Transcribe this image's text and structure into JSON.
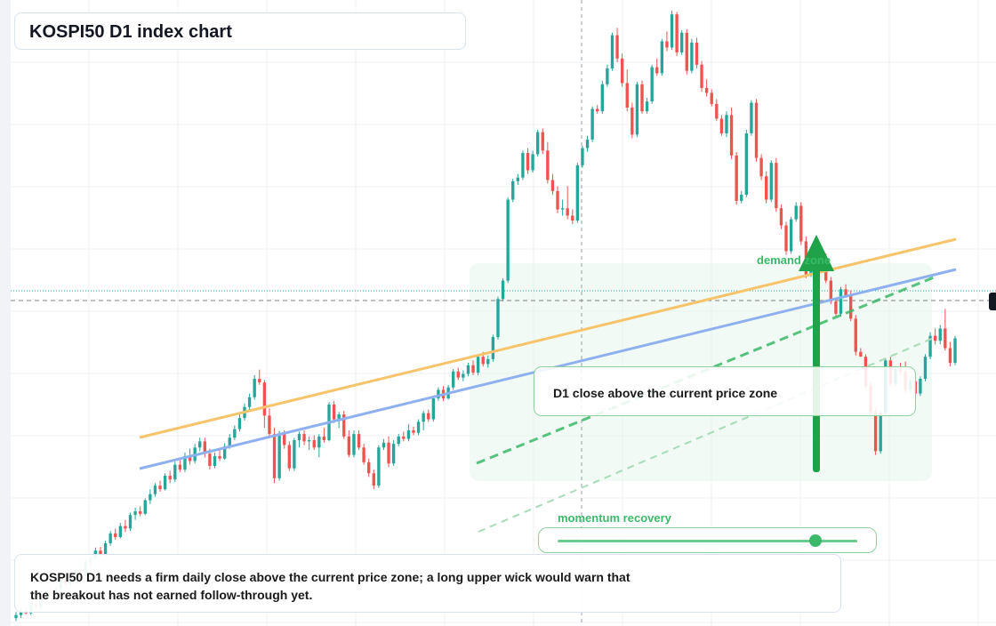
{
  "title": "KOSPI50 D1 index chart",
  "annotations": {
    "callout": "D1 close above the current price zone",
    "demand_zone_label": "demand zone",
    "momentum_label": "momentum recovery",
    "momentum_level": 0.86,
    "note": "KOSPI50 D1 needs a firm daily close above the current price zone; a long upper wick would warn that the breakout has not earned follow-through yet."
  },
  "colors": {
    "up": "#26a69a",
    "down": "#ef5350",
    "orange_line": "#f7c36b",
    "blue_line": "#8fb0f0",
    "zone_green": "#3cb86a",
    "arrow": "#1fa34a"
  },
  "chart_data": {
    "type": "candlestick",
    "timeframe": "D1",
    "symbol": "KOSPI50",
    "y_axis": "price (unlabeled)",
    "ylim": [
      0,
      100
    ],
    "grid": true,
    "candles_note": "OHLC in relative price units (axis not printed)",
    "candles": [
      [
        1.0,
        2.0,
        0.5,
        1.5
      ],
      [
        1.5,
        2.5,
        1.0,
        2.2
      ],
      [
        2.2,
        2.8,
        1.6,
        1.8
      ],
      [
        1.8,
        3.5,
        1.5,
        3.2
      ],
      [
        3.2,
        3.8,
        2.5,
        2.8
      ],
      [
        2.8,
        4.5,
        2.6,
        4.2
      ],
      [
        4.2,
        5.6,
        3.8,
        5.2
      ],
      [
        5.2,
        6.0,
        4.5,
        4.8
      ],
      [
        4.8,
        6.2,
        4.4,
        5.8
      ],
      [
        5.8,
        7.5,
        5.4,
        7.2
      ],
      [
        7.2,
        7.8,
        6.2,
        6.5
      ],
      [
        6.5,
        8.2,
        6.2,
        7.8
      ],
      [
        7.8,
        9.0,
        7.0,
        8.6
      ],
      [
        8.6,
        9.2,
        7.6,
        8.0
      ],
      [
        8.0,
        10.5,
        7.8,
        10.2
      ],
      [
        10.2,
        11.2,
        9.5,
        10.8
      ],
      [
        10.8,
        12.5,
        10.4,
        12.0
      ],
      [
        12.0,
        12.6,
        11.0,
        11.4
      ],
      [
        11.4,
        13.6,
        11.0,
        13.2
      ],
      [
        13.2,
        15.2,
        12.8,
        14.8
      ],
      [
        14.8,
        15.6,
        13.8,
        14.2
      ],
      [
        14.2,
        16.5,
        14.0,
        16.0
      ],
      [
        16.0,
        17.0,
        15.0,
        15.6
      ],
      [
        15.6,
        18.2,
        15.2,
        17.8
      ],
      [
        17.8,
        19.0,
        17.0,
        18.4
      ],
      [
        18.4,
        19.2,
        17.6,
        18.0
      ],
      [
        18.0,
        20.5,
        17.8,
        20.2
      ],
      [
        20.2,
        22.0,
        19.6,
        21.2
      ],
      [
        21.2,
        23.0,
        20.8,
        22.6
      ],
      [
        22.6,
        23.4,
        21.6,
        22.0
      ],
      [
        22.0,
        24.6,
        21.8,
        24.2
      ],
      [
        24.2,
        25.0,
        23.0,
        23.6
      ],
      [
        23.6,
        26.5,
        23.2,
        26.0
      ],
      [
        26.0,
        26.8,
        24.8,
        25.2
      ],
      [
        25.2,
        28.0,
        24.8,
        27.4
      ],
      [
        27.4,
        28.6,
        26.0,
        26.6
      ],
      [
        26.6,
        29.4,
        26.2,
        28.8
      ],
      [
        28.8,
        30.4,
        28.2,
        29.8
      ],
      [
        29.8,
        30.4,
        27.2,
        27.8
      ],
      [
        27.8,
        28.6,
        25.2,
        25.8
      ],
      [
        25.8,
        28.0,
        25.4,
        27.4
      ],
      [
        27.4,
        28.4,
        26.6,
        27.0
      ],
      [
        27.0,
        29.5,
        26.8,
        29.0
      ],
      [
        29.0,
        31.0,
        28.6,
        30.4
      ],
      [
        30.4,
        32.4,
        30.0,
        31.8
      ],
      [
        31.8,
        34.2,
        31.4,
        33.6
      ],
      [
        33.6,
        36.0,
        33.2,
        35.4
      ],
      [
        35.4,
        37.6,
        35.0,
        37.0
      ],
      [
        37.0,
        40.6,
        36.6,
        40.0
      ],
      [
        40.0,
        41.5,
        39.0,
        39.4
      ],
      [
        39.4,
        39.8,
        32.0,
        34.0
      ],
      [
        34.0,
        35.2,
        30.5,
        31.0
      ],
      [
        31.0,
        32.0,
        23.0,
        23.8
      ],
      [
        23.8,
        31.5,
        23.4,
        31.0
      ],
      [
        31.0,
        31.6,
        28.6,
        29.2
      ],
      [
        29.2,
        29.8,
        25.0,
        25.4
      ],
      [
        25.4,
        30.4,
        25.0,
        30.0
      ],
      [
        30.0,
        31.4,
        28.8,
        31.0
      ],
      [
        31.0,
        31.6,
        29.2,
        29.8
      ],
      [
        29.8,
        30.6,
        28.4,
        30.0
      ],
      [
        30.0,
        30.8,
        28.4,
        28.8
      ],
      [
        28.8,
        31.0,
        27.2,
        30.6
      ],
      [
        30.6,
        32.0,
        29.6,
        30.0
      ],
      [
        30.0,
        36.2,
        29.8,
        35.8
      ],
      [
        35.8,
        36.4,
        32.8,
        33.4
      ],
      [
        33.4,
        34.6,
        32.0,
        34.2
      ],
      [
        34.2,
        34.8,
        30.2,
        30.6
      ],
      [
        30.6,
        31.6,
        27.2,
        27.6
      ],
      [
        27.6,
        31.6,
        27.2,
        31.0
      ],
      [
        31.0,
        31.6,
        28.4,
        28.8
      ],
      [
        28.8,
        29.4,
        26.0,
        26.4
      ],
      [
        26.4,
        27.0,
        24.0,
        24.6
      ],
      [
        24.6,
        25.2,
        22.0,
        22.6
      ],
      [
        22.6,
        29.2,
        22.2,
        28.8
      ],
      [
        28.8,
        30.2,
        28.4,
        29.6
      ],
      [
        29.6,
        30.6,
        25.6,
        26.2
      ],
      [
        26.2,
        30.0,
        25.8,
        29.4
      ],
      [
        29.4,
        31.0,
        29.0,
        30.6
      ],
      [
        30.6,
        31.4,
        29.8,
        30.2
      ],
      [
        30.2,
        32.6,
        29.8,
        31.6
      ],
      [
        31.6,
        32.2,
        30.8,
        31.2
      ],
      [
        31.2,
        33.4,
        30.8,
        33.0
      ],
      [
        33.0,
        34.8,
        31.6,
        34.4
      ],
      [
        34.4,
        35.0,
        33.0,
        33.4
      ],
      [
        33.4,
        37.2,
        33.0,
        36.8
      ],
      [
        36.8,
        38.6,
        36.4,
        38.2
      ],
      [
        38.2,
        38.8,
        36.4,
        36.8
      ],
      [
        36.8,
        39.0,
        36.6,
        38.6
      ],
      [
        38.6,
        41.6,
        38.2,
        41.2
      ],
      [
        41.2,
        41.8,
        39.8,
        40.2
      ],
      [
        40.2,
        41.4,
        39.6,
        40.8
      ],
      [
        40.8,
        42.6,
        40.4,
        42.2
      ],
      [
        42.2,
        43.0,
        40.6,
        41.0
      ],
      [
        41.0,
        44.0,
        40.6,
        43.6
      ],
      [
        43.6,
        44.4,
        42.0,
        42.4
      ],
      [
        42.4,
        43.8,
        41.8,
        43.2
      ],
      [
        43.2,
        47.2,
        42.8,
        46.8
      ],
      [
        46.8,
        53.4,
        46.4,
        53.0
      ],
      [
        53.0,
        56.4,
        52.6,
        56.0
      ],
      [
        56.0,
        69.6,
        55.6,
        69.2
      ],
      [
        69.2,
        72.6,
        68.8,
        72.2
      ],
      [
        72.2,
        73.4,
        71.6,
        72.8
      ],
      [
        72.8,
        77.2,
        72.4,
        76.8
      ],
      [
        76.8,
        77.6,
        73.4,
        74.0
      ],
      [
        74.0,
        77.2,
        73.6,
        76.6
      ],
      [
        76.6,
        80.6,
        76.2,
        80.2
      ],
      [
        80.2,
        80.8,
        76.6,
        77.2
      ],
      [
        77.2,
        78.6,
        71.8,
        72.4
      ],
      [
        72.4,
        73.4,
        70.0,
        70.6
      ],
      [
        70.6,
        71.4,
        67.0,
        67.6
      ],
      [
        67.6,
        69.2,
        66.6,
        67.8
      ],
      [
        67.8,
        71.4,
        66.0,
        66.6
      ],
      [
        66.6,
        67.6,
        65.2,
        65.8
      ],
      [
        65.8,
        75.2,
        65.4,
        74.8
      ],
      [
        74.8,
        78.0,
        74.4,
        77.6
      ],
      [
        77.6,
        79.6,
        77.0,
        79.0
      ],
      [
        79.0,
        84.4,
        78.6,
        84.0
      ],
      [
        84.0,
        84.6,
        83.2,
        83.6
      ],
      [
        83.6,
        88.6,
        83.2,
        88.0
      ],
      [
        88.0,
        91.2,
        87.6,
        90.6
      ],
      [
        90.6,
        96.4,
        90.2,
        96.0
      ],
      [
        96.0,
        97.2,
        91.6,
        92.2
      ],
      [
        92.2,
        93.0,
        87.6,
        88.2
      ],
      [
        88.2,
        90.4,
        83.6,
        84.2
      ],
      [
        84.2,
        85.0,
        79.2,
        79.8
      ],
      [
        79.8,
        88.4,
        79.4,
        88.0
      ],
      [
        88.0,
        88.6,
        83.2,
        83.6
      ],
      [
        83.6,
        85.8,
        83.2,
        85.2
      ],
      [
        85.2,
        91.2,
        84.8,
        90.8
      ],
      [
        90.8,
        92.2,
        89.4,
        89.8
      ],
      [
        89.8,
        95.4,
        89.4,
        95.0
      ],
      [
        95.0,
        96.6,
        93.4,
        94.0
      ],
      [
        94.0,
        100.0,
        93.6,
        99.4
      ],
      [
        99.4,
        99.8,
        92.6,
        93.2
      ],
      [
        93.2,
        96.8,
        92.8,
        96.4
      ],
      [
        96.4,
        97.0,
        89.6,
        90.2
      ],
      [
        90.2,
        95.4,
        89.8,
        94.8
      ],
      [
        94.8,
        95.6,
        90.6,
        91.2
      ],
      [
        91.2,
        91.8,
        86.8,
        87.4
      ],
      [
        87.4,
        88.8,
        86.0,
        86.6
      ],
      [
        86.6,
        87.2,
        84.4,
        84.8
      ],
      [
        84.8,
        85.6,
        82.0,
        82.4
      ],
      [
        82.4,
        83.0,
        79.6,
        80.0
      ],
      [
        80.0,
        83.6,
        79.4,
        83.0
      ],
      [
        83.0,
        84.2,
        75.8,
        76.4
      ],
      [
        76.4,
        77.0,
        68.4,
        69.0
      ],
      [
        69.0,
        70.6,
        68.6,
        70.0
      ],
      [
        70.0,
        80.6,
        69.6,
        80.0
      ],
      [
        80.0,
        85.4,
        79.6,
        85.0
      ],
      [
        85.0,
        85.6,
        75.4,
        76.0
      ],
      [
        76.0,
        76.6,
        72.4,
        73.0
      ],
      [
        73.0,
        73.8,
        68.6,
        69.2
      ],
      [
        69.2,
        75.6,
        68.8,
        75.2
      ],
      [
        75.2,
        76.0,
        67.2,
        67.8
      ],
      [
        67.8,
        68.4,
        64.4,
        65.0
      ],
      [
        65.0,
        65.6,
        60.2,
        60.8
      ],
      [
        60.8,
        66.4,
        60.4,
        66.0
      ],
      [
        66.0,
        68.8,
        65.6,
        68.2
      ],
      [
        68.2,
        68.8,
        61.8,
        62.4
      ],
      [
        62.4,
        63.2,
        56.4,
        57.0
      ],
      [
        57.0,
        60.6,
        56.6,
        60.2
      ],
      [
        60.2,
        61.0,
        58.0,
        58.4
      ],
      [
        58.4,
        60.4,
        58.0,
        59.8
      ],
      [
        59.8,
        60.4,
        55.6,
        56.0
      ],
      [
        56.0,
        56.6,
        52.2,
        52.6
      ],
      [
        52.6,
        53.2,
        50.2,
        50.6
      ],
      [
        50.6,
        55.0,
        50.2,
        54.6
      ],
      [
        54.6,
        55.4,
        53.2,
        53.6
      ],
      [
        53.6,
        54.4,
        49.4,
        49.8
      ],
      [
        49.8,
        50.4,
        43.8,
        44.4
      ],
      [
        44.4,
        45.0,
        43.6,
        43.6
      ],
      [
        43.6,
        44.0,
        38.4,
        38.8
      ],
      [
        38.8,
        39.4,
        34.0,
        34.6
      ],
      [
        34.6,
        35.2,
        27.6,
        28.2
      ],
      [
        28.2,
        34.8,
        27.8,
        34.4
      ],
      [
        34.4,
        43.4,
        34.0,
        43.0
      ],
      [
        43.0,
        43.6,
        38.8,
        39.2
      ],
      [
        39.2,
        42.0,
        38.8,
        41.6
      ],
      [
        41.6,
        42.6,
        40.6,
        41.2
      ],
      [
        41.2,
        42.8,
        37.6,
        38.2
      ],
      [
        38.2,
        40.2,
        37.8,
        39.6
      ],
      [
        39.6,
        40.4,
        37.2,
        37.6
      ],
      [
        37.6,
        40.4,
        37.2,
        40.0
      ],
      [
        40.0,
        44.0,
        39.6,
        43.6
      ],
      [
        43.6,
        47.6,
        43.2,
        47.0
      ],
      [
        47.0,
        48.2,
        45.6,
        46.2
      ],
      [
        46.2,
        48.8,
        45.6,
        48.2
      ],
      [
        48.2,
        51.4,
        44.6,
        45.0
      ],
      [
        45.0,
        46.0,
        42.0,
        42.6
      ],
      [
        42.6,
        47.0,
        42.2,
        46.6
      ]
    ],
    "trendlines": [
      {
        "style": "solid",
        "color": "#f7c36b"
      },
      {
        "style": "solid",
        "color": "#8fb0f0"
      },
      {
        "style": "dashed",
        "color": "#3cb86a"
      },
      {
        "style": "dashed",
        "color": "#a8dcb9"
      }
    ],
    "current_price_line": {
      "style": "dashed",
      "color": "#808080"
    },
    "demand_zone": {
      "label": "demand zone"
    },
    "arrow": {
      "direction": "up"
    }
  }
}
